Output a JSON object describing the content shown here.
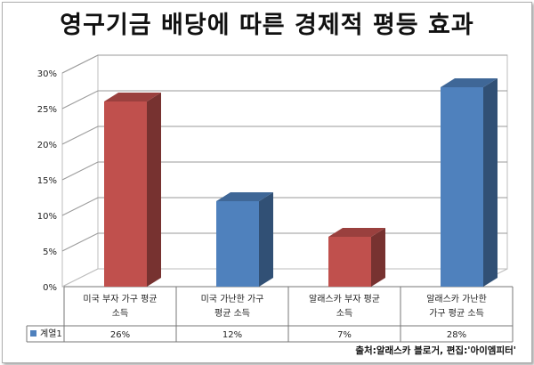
{
  "chart_data": {
    "type": "bar",
    "title": "영구기금 배당에 따른 경제적 평등 효과",
    "categories": [
      [
        "미국 부자 가구 평균",
        "소득"
      ],
      [
        "미국 가난한 가구",
        "평균 소득"
      ],
      [
        "알래스카 부자 평균",
        "소득"
      ],
      [
        "알래스카 가난한",
        "가구 평균 소득"
      ]
    ],
    "series": [
      {
        "name": "계열1",
        "values": [
          26,
          12,
          7,
          28
        ]
      }
    ],
    "value_labels": [
      "26%",
      "12%",
      "7%",
      "28%"
    ],
    "bar_colors": [
      "#c0504d",
      "#4f81bd",
      "#c0504d",
      "#4f81bd"
    ],
    "legend_color": "#4f81bd",
    "yticks": [
      "0%",
      "5%",
      "10%",
      "15%",
      "20%",
      "25%",
      "30%"
    ],
    "ylim": [
      0,
      30
    ],
    "grid": true,
    "legend_placement": "data-table-left"
  },
  "source_text": "출처:알래스카 블로거, 편집:'아이엠피터'"
}
